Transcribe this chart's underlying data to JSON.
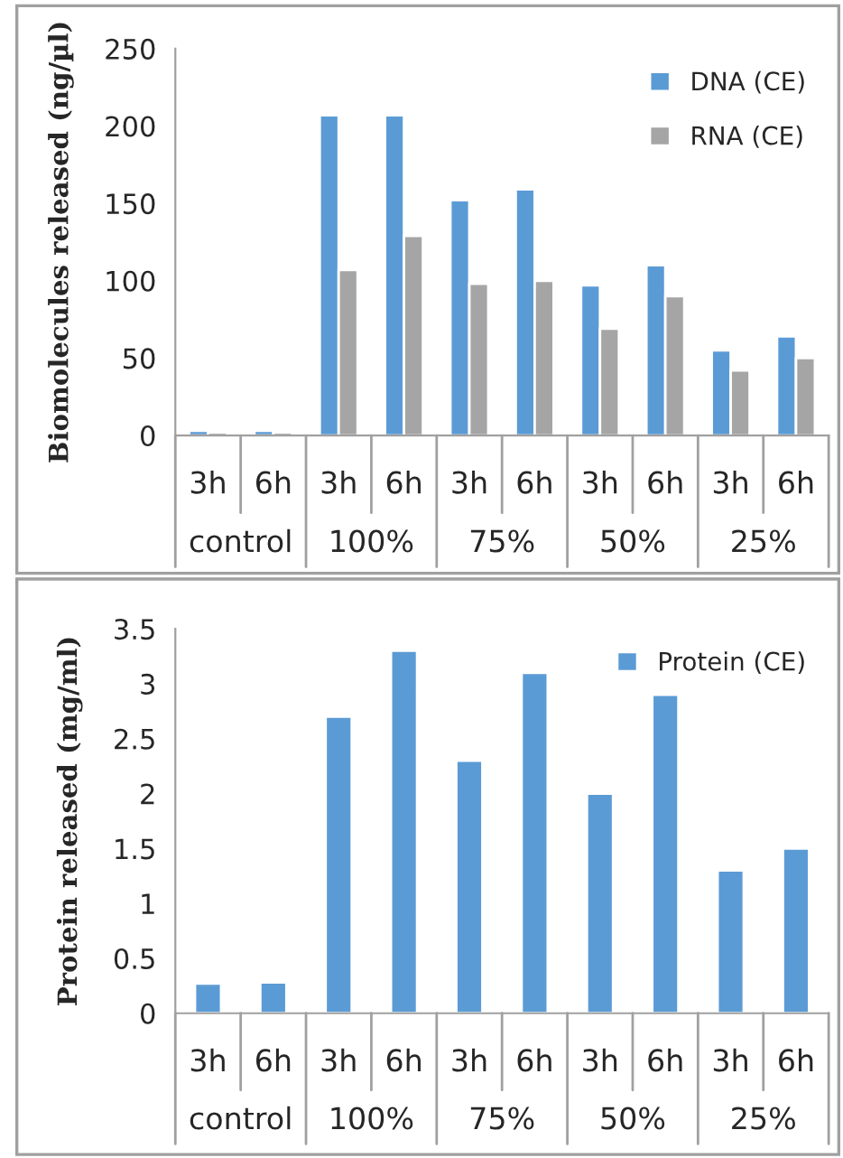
{
  "chart_data": [
    {
      "type": "bar",
      "ylabel": "Biomolecules released (ng/µl)",
      "categories": [
        "3h",
        "6h",
        "3h",
        "6h",
        "3h",
        "6h",
        "3h",
        "6h",
        "3h",
        "6h"
      ],
      "annotations": [
        "control",
        "100%",
        "75%",
        "50%",
        "25%"
      ],
      "series": [
        {
          "name": "DNA (CE)",
          "color": "#5b9bd5",
          "values": [
            3,
            3,
            207,
            207,
            152,
            159,
            97,
            110,
            55,
            64
          ]
        },
        {
          "name": "RNA (CE)",
          "color": "#a5a5a5",
          "values": [
            2,
            2,
            107,
            129,
            98,
            100,
            69,
            90,
            42,
            50
          ]
        }
      ],
      "ylim": [
        0,
        250
      ],
      "yticks": [
        0,
        50,
        100,
        150,
        200,
        250
      ],
      "legend": "top right",
      "grid": false
    },
    {
      "type": "bar",
      "ylabel": "Protein released (mg/ml)",
      "categories": [
        "3h",
        "6h",
        "3h",
        "6h",
        "3h",
        "6h",
        "3h",
        "6h",
        "3h",
        "6h"
      ],
      "annotations": [
        "control",
        "100%",
        "75%",
        "50%",
        "25%"
      ],
      "series": [
        {
          "name": "Protein (CE)",
          "color": "#5b9bd5",
          "values": [
            0.27,
            0.28,
            2.7,
            3.3,
            2.3,
            3.1,
            2.0,
            2.9,
            1.3,
            1.5
          ]
        }
      ],
      "ylim": [
        0,
        3.5
      ],
      "yticks": [
        0,
        0.5,
        1,
        1.5,
        2,
        2.5,
        3,
        3.5
      ],
      "legend": "top right",
      "grid": false
    }
  ]
}
